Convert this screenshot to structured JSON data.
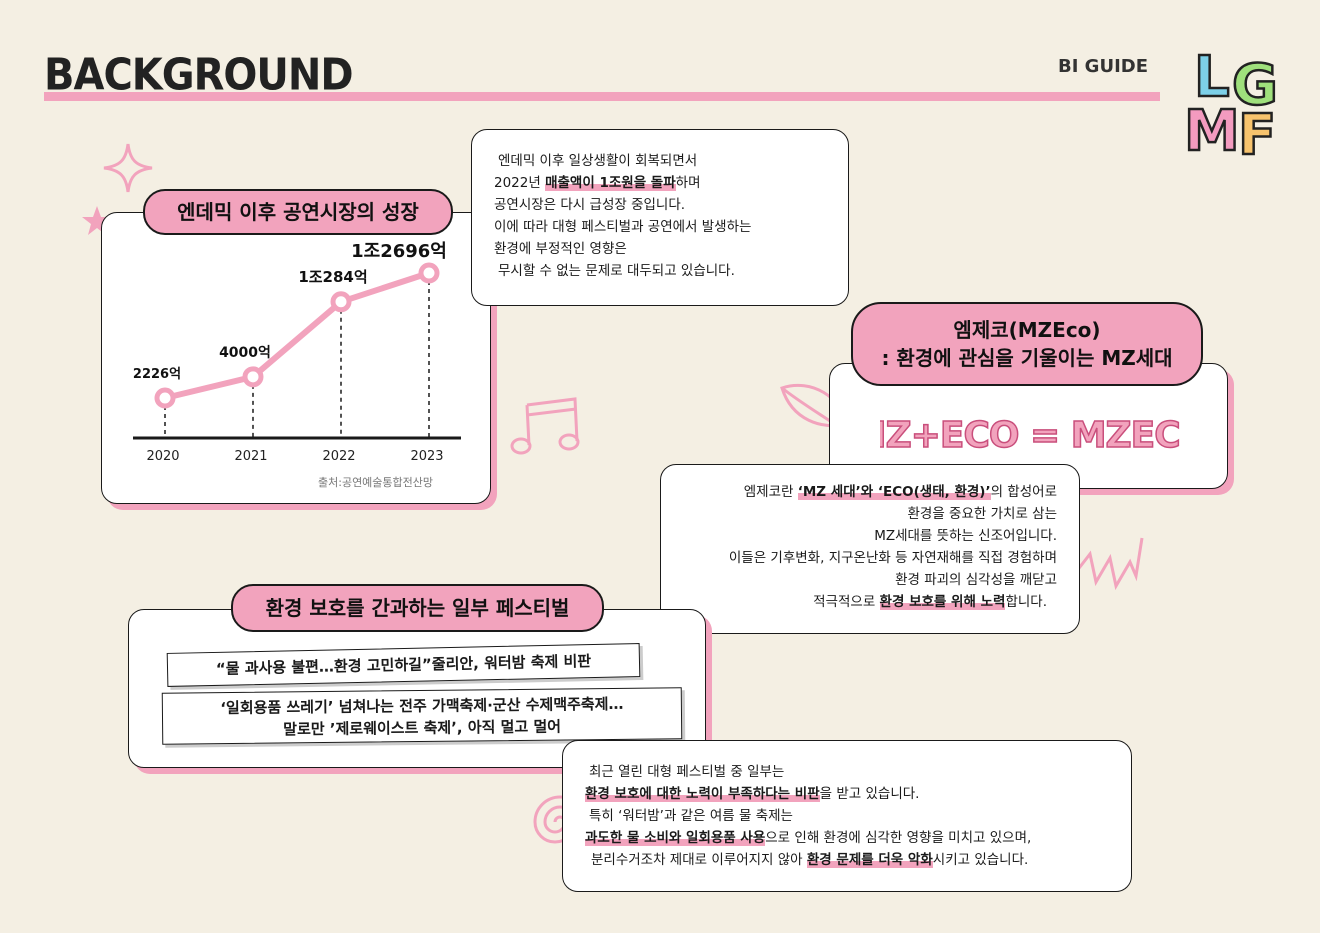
{
  "header": {
    "title": "BACKGROUND",
    "guide_label": "BI GUIDE",
    "logo_letters": [
      "L",
      "G",
      "M",
      "F"
    ]
  },
  "growth": {
    "title": "엔데믹 이후 공연시장의 성장",
    "source": "출처:공연예술통합전산망",
    "chart_data": {
      "type": "line",
      "title": "엔데믹 이후 공연시장의 성장",
      "categories": [
        "2020",
        "2021",
        "2022",
        "2023"
      ],
      "values": [
        2226,
        4000,
        10284,
        12696
      ],
      "data_labels": [
        "2226억",
        "4000억",
        "1조284억",
        "1조2696억"
      ],
      "unit": "억원",
      "ylim": [
        0,
        13000
      ],
      "xlabel": "",
      "ylabel": "",
      "grid": false
    }
  },
  "endemic_text": {
    "l1": "엔데믹 이후 일상생활이 회복되면서",
    "l2_pre": "2022년 ",
    "l2_hl": "매출액이 1조원을 돌파",
    "l2_post": "하며",
    "l3": "공연시장은 다시 급성장 중입니다.",
    "l4": "이에 따라 대형 페스티벌과 공연에서 발생하는",
    "l5": "환경에 부정적인 영향은",
    "l6": "무시할 수 없는 문제로 대두되고 있습니다."
  },
  "mzeco": {
    "title_line1": "엠제코(MZEco)",
    "title_line2": ": 환경에 관심을 기울이는 MZ세대",
    "formula": "MZ+ECO = MZECO",
    "t1_pre": "엠제코란 ",
    "t1_hl": "‘MZ 세대’와 ‘ECO(생태, 환경)’",
    "t1_post": "의 합성어로",
    "t2": "환경을 중요한 가치로 삼는",
    "t3": "MZ세대를 뜻하는 신조어입니다.",
    "t4": "이들은 기후변화, 지구온난화 등 자연재해를 직접 경험하며",
    "t5": "환경 파괴의 심각성을 깨닫고",
    "t6_pre": "적극적으로 ",
    "t6_hl": "환경 보호를 위해 노력",
    "t6_post": "합니다."
  },
  "festival": {
    "title": "환경 보호를 간과하는 일부 페스티벌",
    "headline1": "“물 과사용 불편…환경 고민하길”줄리안, 워터밤 축제 비판",
    "headline2a": "‘일회용품 쓰레기’ 넘쳐나는 전주 가맥축제·군산 수제맥주축제…",
    "headline2b": "말로만 ’제로웨이스트 축제’, 아직 멀고 멀어",
    "b1": "최근 열린 대형 페스티벌 중 일부는",
    "b2_hl": "환경 보호에 대한 노력이 부족하다는 비판",
    "b2_post": "을 받고 있습니다.",
    "b3": "특히 ‘워터밤’과 같은 여름 물 축제는",
    "b4_hl": "과도한 물 소비와 일회용품 사용",
    "b4_post": "으로 인해 환경에 심각한 영향을 미치고 있으며,",
    "b5_pre": "분리수거조차 제대로 이루어지지 않아 ",
    "b5_hl": "환경 문제를 더욱 악화",
    "b5_post": "시키고 있습니다."
  },
  "colors": {
    "background": "#f4efe3",
    "accent_pink": "#f2a3bd",
    "ink": "#1a1a1a"
  }
}
